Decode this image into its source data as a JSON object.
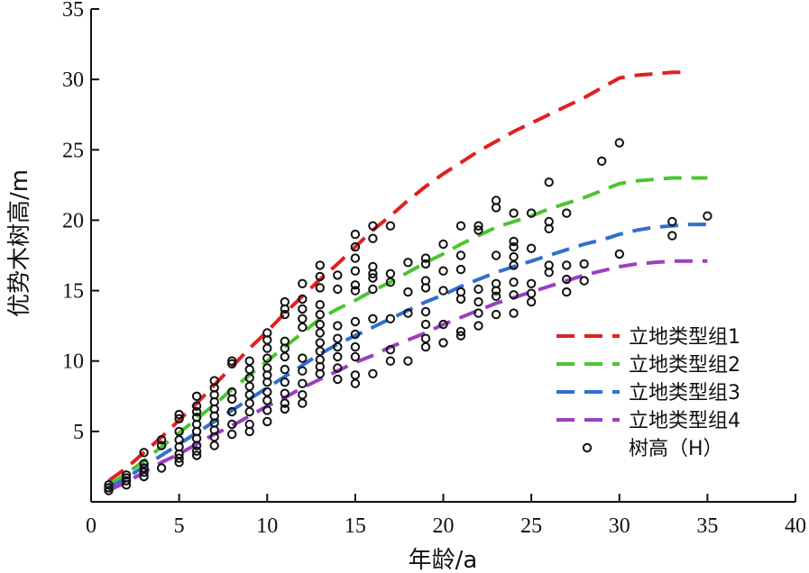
{
  "chart_data": {
    "type": "scatter",
    "title": "",
    "xlabel": "年龄/a",
    "ylabel": "优势木树高/m",
    "xlim": [
      0,
      40
    ],
    "ylim": [
      0,
      35
    ],
    "xticks": [
      0,
      5,
      10,
      15,
      20,
      25,
      30,
      35,
      40
    ],
    "yticks": [
      5,
      10,
      15,
      20,
      25,
      30,
      35
    ],
    "grid": false,
    "legend_position": "bottom-right",
    "series": [
      {
        "name": "立地类型组1",
        "kind": "dashed-line",
        "color": "#e02020",
        "x": [
          1,
          2,
          3,
          4,
          5,
          6,
          7,
          8,
          9,
          10,
          11,
          12,
          13,
          14,
          15,
          16,
          17,
          18,
          19,
          20,
          21,
          22,
          23,
          24,
          25,
          26,
          27,
          28,
          29,
          30,
          31,
          32,
          33,
          34
        ],
        "y": [
          1.5,
          2.4,
          3.5,
          4.6,
          5.8,
          7.0,
          8.3,
          9.6,
          10.9,
          12.1,
          13.4,
          14.6,
          15.8,
          16.9,
          18.1,
          19.3,
          20.3,
          21.4,
          22.4,
          23.3,
          24.1,
          24.9,
          25.6,
          26.3,
          26.9,
          27.5,
          28.1,
          28.7,
          29.4,
          30.1,
          30.3,
          30.4,
          30.5,
          30.5
        ]
      },
      {
        "name": "立地类型组2",
        "kind": "dashed-line",
        "color": "#4cc430",
        "x": [
          1,
          2,
          3,
          4,
          5,
          6,
          7,
          8,
          9,
          10,
          11,
          12,
          13,
          14,
          15,
          16,
          17,
          18,
          19,
          20,
          21,
          22,
          23,
          24,
          25,
          26,
          27,
          28,
          29,
          30,
          31,
          32,
          33,
          34,
          35
        ],
        "y": [
          1.2,
          2.0,
          2.9,
          3.9,
          4.9,
          5.9,
          6.9,
          8.0,
          9.0,
          10.0,
          11.0,
          12.0,
          13.0,
          13.7,
          14.3,
          15.0,
          15.6,
          16.3,
          17.0,
          17.6,
          18.3,
          18.9,
          19.5,
          19.9,
          20.3,
          20.8,
          21.2,
          21.6,
          22.1,
          22.6,
          22.8,
          22.9,
          23.0,
          23.0,
          23.0
        ]
      },
      {
        "name": "立地类型组3",
        "kind": "dashed-line",
        "color": "#2f6fd0",
        "x": [
          1,
          2,
          3,
          4,
          5,
          6,
          7,
          8,
          9,
          10,
          11,
          12,
          13,
          14,
          15,
          16,
          17,
          18,
          19,
          20,
          21,
          22,
          23,
          24,
          25,
          26,
          27,
          28,
          29,
          30,
          31,
          32,
          33,
          34,
          35
        ],
        "y": [
          1.0,
          1.7,
          2.5,
          3.3,
          4.1,
          4.9,
          5.7,
          6.5,
          7.3,
          8.1,
          8.9,
          9.7,
          10.5,
          11.2,
          11.8,
          12.4,
          13.0,
          13.6,
          14.2,
          14.7,
          15.3,
          15.8,
          16.3,
          16.7,
          17.1,
          17.5,
          17.9,
          18.3,
          18.6,
          19.0,
          19.3,
          19.5,
          19.6,
          19.7,
          19.7
        ]
      },
      {
        "name": "立地类型组4",
        "kind": "dashed-line",
        "color": "#9b3fbf",
        "x": [
          1,
          2,
          3,
          4,
          5,
          6,
          7,
          8,
          9,
          10,
          11,
          12,
          13,
          14,
          15,
          16,
          17,
          18,
          19,
          20,
          21,
          22,
          23,
          24,
          25,
          26,
          27,
          28,
          29,
          30,
          31,
          32,
          33,
          34,
          35
        ],
        "y": [
          0.8,
          1.4,
          2.1,
          2.8,
          3.4,
          4.1,
          4.8,
          5.4,
          6.1,
          6.8,
          7.4,
          8.1,
          8.7,
          9.3,
          9.9,
          10.4,
          11.0,
          11.5,
          12.0,
          12.6,
          13.1,
          13.6,
          14.1,
          14.5,
          14.9,
          15.3,
          15.7,
          16.1,
          16.4,
          16.7,
          16.9,
          17.0,
          17.1,
          17.1,
          17.1
        ]
      },
      {
        "name": "树高（H）",
        "kind": "scatter",
        "color": "#111111",
        "points": [
          [
            1,
            0.8
          ],
          [
            1,
            1.0
          ],
          [
            1,
            1.2
          ],
          [
            2,
            1.2
          ],
          [
            2,
            1.5
          ],
          [
            2,
            1.7
          ],
          [
            2,
            1.9
          ],
          [
            3,
            1.8
          ],
          [
            3,
            2.1
          ],
          [
            3,
            2.4
          ],
          [
            3,
            2.7
          ],
          [
            3,
            3.5
          ],
          [
            4,
            2.4
          ],
          [
            4,
            4.0
          ],
          [
            4,
            4.4
          ],
          [
            5,
            2.8
          ],
          [
            5,
            3.1
          ],
          [
            5,
            3.4
          ],
          [
            5,
            3.9
          ],
          [
            5,
            4.4
          ],
          [
            5,
            5.0
          ],
          [
            5,
            5.9
          ],
          [
            5,
            6.2
          ],
          [
            6,
            3.3
          ],
          [
            6,
            3.6
          ],
          [
            6,
            4.0
          ],
          [
            6,
            4.5
          ],
          [
            6,
            5.0
          ],
          [
            6,
            5.5
          ],
          [
            6,
            6.0
          ],
          [
            6,
            6.4
          ],
          [
            6,
            6.8
          ],
          [
            6,
            7.5
          ],
          [
            7,
            4.0
          ],
          [
            7,
            4.6
          ],
          [
            7,
            5.1
          ],
          [
            7,
            5.6
          ],
          [
            7,
            6.1
          ],
          [
            7,
            6.6
          ],
          [
            7,
            7.1
          ],
          [
            7,
            7.6
          ],
          [
            7,
            8.1
          ],
          [
            7,
            8.6
          ],
          [
            8,
            4.8
          ],
          [
            8,
            5.5
          ],
          [
            8,
            6.4
          ],
          [
            8,
            7.3
          ],
          [
            8,
            7.8
          ],
          [
            8,
            9.8
          ],
          [
            8,
            10.0
          ],
          [
            9,
            5.0
          ],
          [
            9,
            5.5
          ],
          [
            9,
            6.4
          ],
          [
            9,
            7.0
          ],
          [
            9,
            7.6
          ],
          [
            9,
            8.2
          ],
          [
            9,
            8.8
          ],
          [
            9,
            9.4
          ],
          [
            9,
            10.0
          ],
          [
            10,
            5.7
          ],
          [
            10,
            6.5
          ],
          [
            10,
            7.2
          ],
          [
            10,
            7.8
          ],
          [
            10,
            8.5
          ],
          [
            10,
            9.0
          ],
          [
            10,
            9.5
          ],
          [
            10,
            10.2
          ],
          [
            10,
            10.9
          ],
          [
            10,
            11.5
          ],
          [
            10,
            12.0
          ],
          [
            11,
            6.6
          ],
          [
            11,
            7.0
          ],
          [
            11,
            7.7
          ],
          [
            11,
            8.5
          ],
          [
            11,
            9.4
          ],
          [
            11,
            10.3
          ],
          [
            11,
            10.9
          ],
          [
            11,
            11.4
          ],
          [
            11,
            13.3
          ],
          [
            11,
            13.7
          ],
          [
            11,
            14.2
          ],
          [
            12,
            7.0
          ],
          [
            12,
            7.6
          ],
          [
            12,
            8.4
          ],
          [
            12,
            9.3
          ],
          [
            12,
            10.2
          ],
          [
            12,
            12.4
          ],
          [
            12,
            13.0
          ],
          [
            12,
            13.7
          ],
          [
            12,
            14.4
          ],
          [
            12,
            15.5
          ],
          [
            13,
            9.1
          ],
          [
            13,
            9.6
          ],
          [
            13,
            10.1
          ],
          [
            13,
            10.7
          ],
          [
            13,
            11.3
          ],
          [
            13,
            12.0
          ],
          [
            13,
            12.6
          ],
          [
            13,
            13.3
          ],
          [
            13,
            14.0
          ],
          [
            13,
            15.2
          ],
          [
            13,
            16.0
          ],
          [
            13,
            16.8
          ],
          [
            14,
            8.7
          ],
          [
            14,
            9.5
          ],
          [
            14,
            10.3
          ],
          [
            14,
            11.0
          ],
          [
            14,
            11.6
          ],
          [
            14,
            12.5
          ],
          [
            14,
            15.1
          ],
          [
            14,
            16.1
          ],
          [
            15,
            8.4
          ],
          [
            15,
            9.0
          ],
          [
            15,
            10.3
          ],
          [
            15,
            11.0
          ],
          [
            15,
            11.9
          ],
          [
            15,
            12.8
          ],
          [
            15,
            15.0
          ],
          [
            15,
            15.4
          ],
          [
            15,
            16.4
          ],
          [
            15,
            17.3
          ],
          [
            15,
            18.1
          ],
          [
            15,
            19.0
          ],
          [
            16,
            9.1
          ],
          [
            16,
            13.0
          ],
          [
            16,
            15.1
          ],
          [
            16,
            15.9
          ],
          [
            16,
            16.2
          ],
          [
            16,
            16.7
          ],
          [
            16,
            18.7
          ],
          [
            16,
            19.6
          ],
          [
            17,
            10.0
          ],
          [
            17,
            10.8
          ],
          [
            17,
            13.0
          ],
          [
            17,
            15.6
          ],
          [
            17,
            16.2
          ],
          [
            17,
            19.6
          ],
          [
            18,
            10.0
          ],
          [
            18,
            13.4
          ],
          [
            18,
            14.9
          ],
          [
            18,
            17.0
          ],
          [
            19,
            11.0
          ],
          [
            19,
            11.6
          ],
          [
            19,
            12.6
          ],
          [
            19,
            13.5
          ],
          [
            19,
            15.2
          ],
          [
            19,
            15.7
          ],
          [
            19,
            16.9
          ],
          [
            19,
            17.3
          ],
          [
            20,
            11.3
          ],
          [
            20,
            12.6
          ],
          [
            20,
            15.0
          ],
          [
            20,
            16.4
          ],
          [
            20,
            18.3
          ],
          [
            21,
            11.8
          ],
          [
            21,
            12.1
          ],
          [
            21,
            14.4
          ],
          [
            21,
            14.9
          ],
          [
            21,
            16.5
          ],
          [
            21,
            17.5
          ],
          [
            21,
            19.6
          ],
          [
            22,
            12.5
          ],
          [
            22,
            13.4
          ],
          [
            22,
            14.2
          ],
          [
            22,
            15.1
          ],
          [
            22,
            19.3
          ],
          [
            22,
            19.6
          ],
          [
            23,
            13.3
          ],
          [
            23,
            14.6
          ],
          [
            23,
            15.0
          ],
          [
            23,
            15.5
          ],
          [
            23,
            17.5
          ],
          [
            23,
            20.9
          ],
          [
            23,
            21.4
          ],
          [
            24,
            13.4
          ],
          [
            24,
            14.7
          ],
          [
            24,
            15.6
          ],
          [
            24,
            16.8
          ],
          [
            24,
            17.4
          ],
          [
            24,
            18.1
          ],
          [
            24,
            18.5
          ],
          [
            24,
            20.5
          ],
          [
            25,
            14.2
          ],
          [
            25,
            14.8
          ],
          [
            25,
            15.5
          ],
          [
            25,
            18.0
          ],
          [
            25,
            20.5
          ],
          [
            26,
            16.3
          ],
          [
            26,
            16.8
          ],
          [
            26,
            19.4
          ],
          [
            26,
            19.9
          ],
          [
            26,
            22.7
          ],
          [
            27,
            14.9
          ],
          [
            27,
            15.8
          ],
          [
            27,
            16.8
          ],
          [
            27,
            20.5
          ],
          [
            28,
            15.7
          ],
          [
            28,
            16.9
          ],
          [
            29,
            24.2
          ],
          [
            30,
            17.6
          ],
          [
            30,
            25.5
          ],
          [
            33,
            18.9
          ],
          [
            33,
            19.9
          ],
          [
            35,
            20.3
          ]
        ]
      }
    ]
  }
}
